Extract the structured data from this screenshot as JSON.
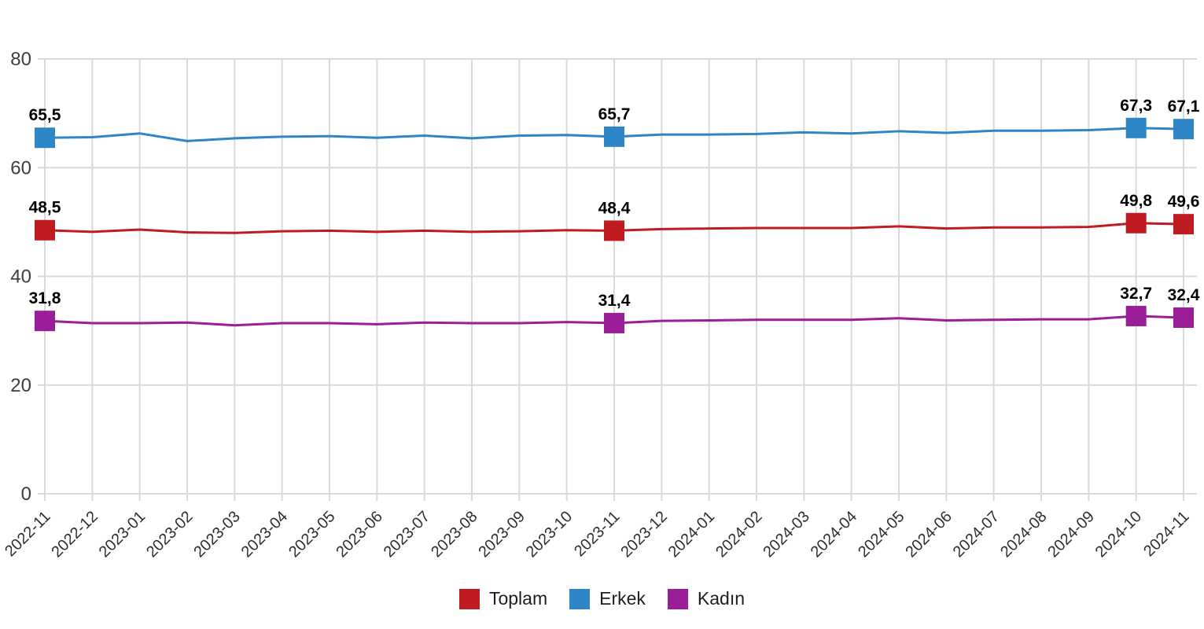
{
  "chart_data": {
    "type": "line",
    "title": "",
    "xlabel": "",
    "ylabel": "",
    "categories": [
      "2022-11",
      "2022-12",
      "2023-01",
      "2023-02",
      "2023-03",
      "2023-04",
      "2023-05",
      "2023-06",
      "2023-07",
      "2023-08",
      "2023-09",
      "2023-10",
      "2023-11",
      "2023-12",
      "2024-01",
      "2024-02",
      "2024-03",
      "2024-04",
      "2024-05",
      "2024-06",
      "2024-07",
      "2024-08",
      "2024-09",
      "2024-10",
      "2024-11"
    ],
    "ylim": [
      0,
      80
    ],
    "y_ticks": [
      0,
      20,
      40,
      60,
      80
    ],
    "grid": true,
    "legend_position": "bottom",
    "series": [
      {
        "name": "Toplam",
        "color": "#c01b20",
        "values": [
          48.5,
          48.2,
          48.6,
          48.1,
          48.0,
          48.3,
          48.4,
          48.2,
          48.4,
          48.2,
          48.3,
          48.5,
          48.4,
          48.7,
          48.8,
          48.9,
          48.9,
          48.9,
          49.2,
          48.8,
          49.0,
          49.0,
          49.1,
          49.8,
          49.6
        ],
        "point_labels": {
          "0": "48,5",
          "12": "48,4",
          "23": "49,8",
          "24": "49,6"
        }
      },
      {
        "name": "Erkek",
        "color": "#2e86c6",
        "values": [
          65.5,
          65.6,
          66.3,
          64.9,
          65.4,
          65.7,
          65.8,
          65.5,
          65.9,
          65.4,
          65.9,
          66.0,
          65.7,
          66.1,
          66.1,
          66.2,
          66.5,
          66.3,
          66.7,
          66.4,
          66.8,
          66.8,
          66.9,
          67.3,
          67.1
        ],
        "point_labels": {
          "0": "65,5",
          "12": "65,7",
          "23": "67,3",
          "24": "67,1"
        }
      },
      {
        "name": "Kadın",
        "color": "#9c1d98",
        "values": [
          31.8,
          31.4,
          31.4,
          31.5,
          31.0,
          31.4,
          31.4,
          31.2,
          31.5,
          31.4,
          31.4,
          31.6,
          31.4,
          31.8,
          31.9,
          32.0,
          32.0,
          32.0,
          32.3,
          31.9,
          32.0,
          32.1,
          32.1,
          32.7,
          32.4
        ],
        "point_labels": {
          "0": "31,8",
          "12": "31,4",
          "23": "32,7",
          "24": "32,4"
        }
      }
    ],
    "colors": {
      "grid": "#d9d9d9",
      "axis_tick_text": "#3d3d3d",
      "x_tick_text": "#2e2e2e",
      "point_label_text": "#000000",
      "background": "#ffffff"
    },
    "marker": {
      "shape": "square",
      "size": 26
    }
  }
}
